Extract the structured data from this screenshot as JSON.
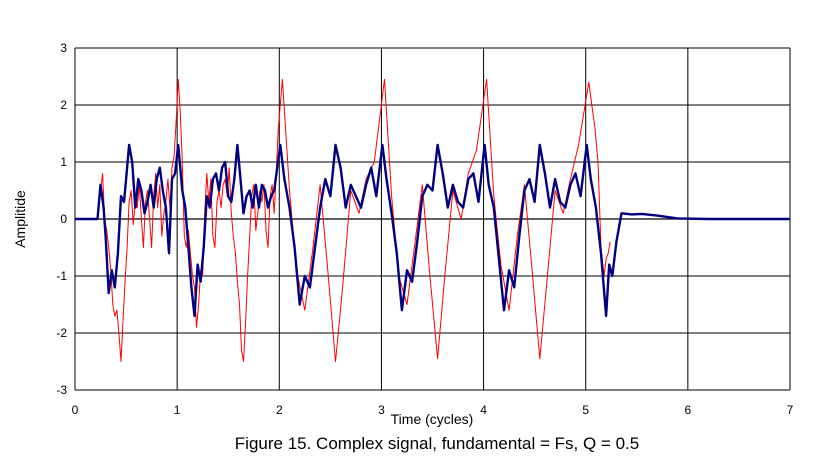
{
  "chart_data": {
    "type": "line",
    "caption": "Figure 15. Complex signal, fundamental = Fs, Q = 0.5",
    "xlabel": "Time (cycles)",
    "ylabel": "Amplitide",
    "xlim": [
      0,
      7
    ],
    "ylim": [
      -3,
      3
    ],
    "x_ticks": [
      "0",
      "1",
      "2",
      "3",
      "4",
      "5",
      "6",
      "7"
    ],
    "y_ticks": [
      "3",
      "2",
      "1",
      "0",
      "-1",
      "-2",
      "-3"
    ],
    "grid": true,
    "legend": "none",
    "series": [
      {
        "color": "#000080",
        "stroke": "thick",
        "x": [
          0,
          0.22,
          0.25,
          0.28,
          0.3,
          0.33,
          0.36,
          0.39,
          0.42,
          0.45,
          0.48,
          0.5,
          0.53,
          0.56,
          0.59,
          0.62,
          0.65,
          0.68,
          0.71,
          0.74,
          0.77,
          0.8,
          0.83,
          0.86,
          0.89,
          0.92,
          0.95,
          0.98,
          1.01,
          1.05,
          1.08,
          1.11,
          1.14,
          1.17,
          1.2,
          1.23,
          1.26,
          1.29,
          1.32,
          1.35,
          1.38,
          1.41,
          1.44,
          1.47,
          1.5,
          1.53,
          1.56,
          1.59,
          1.62,
          1.65,
          1.68,
          1.71,
          1.74,
          1.77,
          1.8,
          1.83,
          1.86,
          1.89,
          1.92,
          1.95,
          1.98,
          2.01,
          2.05,
          2.1,
          2.15,
          2.2,
          2.25,
          2.3,
          2.35,
          2.4,
          2.45,
          2.5,
          2.55,
          2.6,
          2.65,
          2.7,
          2.75,
          2.8,
          2.85,
          2.9,
          2.95,
          3.01,
          3.05,
          3.1,
          3.15,
          3.2,
          3.25,
          3.3,
          3.35,
          3.4,
          3.45,
          3.5,
          3.55,
          3.6,
          3.65,
          3.7,
          3.75,
          3.8,
          3.85,
          3.9,
          3.95,
          4.01,
          4.05,
          4.1,
          4.15,
          4.2,
          4.25,
          4.3,
          4.35,
          4.4,
          4.45,
          4.5,
          4.55,
          4.6,
          4.65,
          4.7,
          4.75,
          4.8,
          4.85,
          4.9,
          4.95,
          5.01,
          5.05,
          5.1,
          5.15,
          5.2,
          5.23,
          5.26,
          5.3,
          5.35,
          5.45,
          5.55,
          5.7,
          5.9,
          6.2,
          7
        ],
        "y": [
          0,
          0,
          0.6,
          0.2,
          -0.3,
          -1.3,
          -0.9,
          -1.2,
          -0.6,
          0.4,
          0.3,
          0.7,
          1.3,
          1.0,
          0.2,
          0.7,
          0.5,
          0.1,
          0.3,
          0.6,
          0.2,
          0.7,
          0.9,
          0.5,
          0.2,
          -0.6,
          0.7,
          0.8,
          1.3,
          0.5,
          0.2,
          -0.5,
          -1.2,
          -1.7,
          -0.8,
          -1.1,
          -0.5,
          0.4,
          0.2,
          0.7,
          0.8,
          0.5,
          0.9,
          1.0,
          0.4,
          0.3,
          0.7,
          1.3,
          0.7,
          0.1,
          0.4,
          0.5,
          0.2,
          0.6,
          0.2,
          0.6,
          0.5,
          0.2,
          0.4,
          0.5,
          0.9,
          1.3,
          0.7,
          0.2,
          -0.5,
          -1.5,
          -1.0,
          -1.2,
          -0.5,
          0.2,
          0.7,
          0.4,
          1.3,
          0.9,
          0.2,
          0.6,
          0.4,
          0.2,
          0.6,
          0.9,
          0.4,
          1.3,
          0.7,
          0.1,
          -0.6,
          -1.6,
          -0.9,
          -1.1,
          -0.4,
          0.4,
          0.6,
          0.5,
          1.3,
          0.8,
          0.2,
          0.6,
          0.3,
          0.2,
          0.7,
          0.8,
          0.3,
          1.3,
          0.6,
          0.2,
          -0.7,
          -1.6,
          -0.9,
          -1.2,
          -0.3,
          0.5,
          0.7,
          0.3,
          1.3,
          0.8,
          0.2,
          0.7,
          0.3,
          0.2,
          0.6,
          0.8,
          0.4,
          1.3,
          0.7,
          0.2,
          -0.6,
          -1.7,
          -0.8,
          -1.0,
          -0.4,
          0.1,
          0.08,
          0.09,
          0.06,
          0.01,
          0,
          0
        ]
      },
      {
        "color": "#ff0000",
        "stroke": "thin",
        "x": [
          0,
          0.22,
          0.25,
          0.27,
          0.29,
          0.31,
          0.33,
          0.35,
          0.37,
          0.39,
          0.41,
          0.43,
          0.45,
          0.47,
          0.49,
          0.51,
          0.53,
          0.55,
          0.57,
          0.59,
          0.61,
          0.63,
          0.65,
          0.67,
          0.69,
          0.71,
          0.73,
          0.75,
          0.77,
          0.79,
          0.81,
          0.83,
          0.85,
          0.87,
          0.89,
          0.91,
          0.93,
          0.95,
          0.97,
          0.99,
          1.01,
          1.03,
          1.05,
          1.07,
          1.09,
          1.11,
          1.13,
          1.15,
          1.17,
          1.19,
          1.21,
          1.23,
          1.25,
          1.27,
          1.29,
          1.31,
          1.33,
          1.35,
          1.37,
          1.39,
          1.41,
          1.43,
          1.45,
          1.47,
          1.49,
          1.51,
          1.53,
          1.55,
          1.57,
          1.59,
          1.61,
          1.63,
          1.65,
          1.67,
          1.69,
          1.71,
          1.73,
          1.75,
          1.77,
          1.79,
          1.81,
          1.83,
          1.85,
          1.87,
          1.89,
          1.91,
          1.93,
          1.95,
          1.97,
          1.99,
          2.03,
          2.1,
          2.17,
          2.25,
          2.33,
          2.4,
          2.47,
          2.55,
          2.62,
          2.7,
          2.78,
          2.85,
          2.93,
          3.03,
          3.1,
          3.17,
          3.25,
          3.33,
          3.4,
          3.47,
          3.55,
          3.62,
          3.7,
          3.78,
          3.85,
          3.93,
          4.03,
          4.1,
          4.17,
          4.25,
          4.33,
          4.4,
          4.47,
          4.55,
          4.62,
          4.7,
          4.78,
          4.85,
          4.93,
          5.03,
          5.06,
          5.09,
          5.12,
          5.15,
          5.18,
          5.2,
          5.22,
          5.24
        ],
        "y": [
          0,
          0,
          0.5,
          0.8,
          0.0,
          -0.2,
          -0.5,
          -0.9,
          -1.5,
          -1.7,
          -1.6,
          -2.0,
          -2.5,
          -1.8,
          -1.1,
          -0.5,
          0.3,
          0.5,
          -0.1,
          0.3,
          0.2,
          0.6,
          0.0,
          -0.5,
          0.3,
          0.5,
          0.0,
          -0.5,
          0.4,
          0.8,
          0.2,
          0.6,
          -0.3,
          0.1,
          0.3,
          0.7,
          0.2,
          0.9,
          1.1,
          1.7,
          2.45,
          1.9,
          1.0,
          -0.3,
          -0.5,
          -0.2,
          -0.6,
          -1.0,
          -1.2,
          -1.9,
          -1.5,
          -0.9,
          -1.0,
          0.1,
          0.8,
          0.3,
          0.7,
          -0.3,
          -0.5,
          0.3,
          0.5,
          0.2,
          0.6,
          0.7,
          0.4,
          0.9,
          0.1,
          -0.3,
          -0.6,
          -1.1,
          -1.5,
          -2.3,
          -2.5,
          -1.8,
          -1.0,
          -0.3,
          0.4,
          0.6,
          -0.2,
          0.1,
          0.5,
          0.3,
          0.6,
          -0.2,
          -0.5,
          0.4,
          0.6,
          0.1,
          0.8,
          1.6,
          2.45,
          0.5,
          -0.9,
          -1.6,
          -0.5,
          0.6,
          -0.8,
          -2.5,
          -1.2,
          0.5,
          0.1,
          0.7,
          1.0,
          2.45,
          0.4,
          -1.0,
          -1.5,
          -0.4,
          0.6,
          -0.9,
          -2.45,
          -1.0,
          0.5,
          0.0,
          0.8,
          1.2,
          2.45,
          0.4,
          -0.8,
          -1.6,
          -0.3,
          0.6,
          -0.8,
          -2.45,
          -1.1,
          0.5,
          0.1,
          0.7,
          1.3,
          2.4,
          2.0,
          1.6,
          1.0,
          -0.5,
          -1.0,
          -0.7,
          -0.6,
          -0.4
        ]
      }
    ]
  }
}
